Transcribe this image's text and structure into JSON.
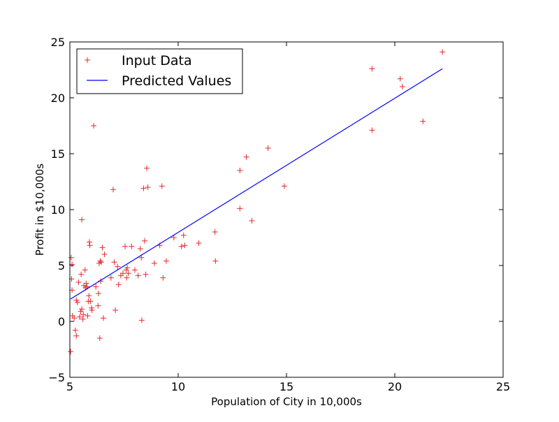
{
  "chart_data": {
    "type": "scatter",
    "xlabel": "Population of City in 10,000s",
    "ylabel": "Profit in $10,000s",
    "xlim": [
      5,
      25
    ],
    "ylim": [
      -5,
      25
    ],
    "xticks": [
      5,
      10,
      15,
      20,
      25
    ],
    "yticks": [
      -5,
      0,
      5,
      10,
      15,
      20,
      25
    ],
    "grid": false,
    "legend_position": "top-left",
    "series": [
      {
        "name": "Input Data",
        "kind": "points",
        "marker": "+",
        "color": "#e8262b",
        "points": [
          [
            5.03,
            -2.7
          ],
          [
            5.06,
            5.7
          ],
          [
            5.1,
            5.1
          ],
          [
            5.08,
            3.8
          ],
          [
            5.1,
            2.8
          ],
          [
            5.12,
            0.5
          ],
          [
            5.2,
            0.3
          ],
          [
            5.25,
            -0.8
          ],
          [
            5.3,
            -1.3
          ],
          [
            5.3,
            1.9
          ],
          [
            5.35,
            1.7
          ],
          [
            5.4,
            3.5
          ],
          [
            5.45,
            0.4
          ],
          [
            5.5,
            0.9
          ],
          [
            5.52,
            4.2
          ],
          [
            5.55,
            9.1
          ],
          [
            5.55,
            1.1
          ],
          [
            5.6,
            0.2
          ],
          [
            5.62,
            0.6
          ],
          [
            5.65,
            3.2
          ],
          [
            5.7,
            4.6
          ],
          [
            5.72,
            3.0
          ],
          [
            5.75,
            3.4
          ],
          [
            5.8,
            3.1
          ],
          [
            5.82,
            0.5
          ],
          [
            5.85,
            1.8
          ],
          [
            5.88,
            2.3
          ],
          [
            5.9,
            7.1
          ],
          [
            5.92,
            6.8
          ],
          [
            5.95,
            1.8
          ],
          [
            6.0,
            1.2
          ],
          [
            6.02,
            1.0
          ],
          [
            6.1,
            17.5
          ],
          [
            6.2,
            3.1
          ],
          [
            6.3,
            1.4
          ],
          [
            6.32,
            2.5
          ],
          [
            6.35,
            5.2
          ],
          [
            6.38,
            -1.5
          ],
          [
            6.4,
            5.4
          ],
          [
            6.42,
            3.6
          ],
          [
            6.45,
            5.3
          ],
          [
            6.5,
            6.6
          ],
          [
            6.55,
            0.3
          ],
          [
            6.6,
            6.0
          ],
          [
            6.9,
            3.9
          ],
          [
            7.0,
            11.8
          ],
          [
            7.05,
            5.3
          ],
          [
            7.1,
            1.0
          ],
          [
            7.2,
            4.9
          ],
          [
            7.25,
            3.3
          ],
          [
            7.35,
            4.1
          ],
          [
            7.45,
            4.3
          ],
          [
            7.55,
            6.7
          ],
          [
            7.6,
            4.6
          ],
          [
            7.62,
            3.9
          ],
          [
            7.65,
            4.8
          ],
          [
            7.7,
            4.3
          ],
          [
            7.85,
            6.7
          ],
          [
            8.0,
            4.6
          ],
          [
            8.15,
            4.1
          ],
          [
            8.25,
            6.5
          ],
          [
            8.3,
            5.7
          ],
          [
            8.32,
            0.1
          ],
          [
            8.4,
            11.9
          ],
          [
            8.45,
            7.2
          ],
          [
            8.5,
            4.2
          ],
          [
            8.55,
            13.7
          ],
          [
            8.6,
            12.0
          ],
          [
            8.9,
            5.2
          ],
          [
            9.15,
            6.8
          ],
          [
            9.25,
            12.1
          ],
          [
            9.3,
            3.9
          ],
          [
            9.45,
            5.4
          ],
          [
            9.8,
            7.5
          ],
          [
            10.15,
            6.7
          ],
          [
            10.25,
            7.7
          ],
          [
            10.3,
            6.8
          ],
          [
            10.95,
            7.0
          ],
          [
            11.7,
            8.0
          ],
          [
            11.72,
            5.4
          ],
          [
            12.85,
            13.5
          ],
          [
            12.85,
            10.1
          ],
          [
            13.15,
            14.7
          ],
          [
            13.4,
            9.0
          ],
          [
            14.15,
            15.5
          ],
          [
            14.9,
            12.1
          ],
          [
            18.95,
            22.6
          ],
          [
            18.95,
            17.1
          ],
          [
            20.25,
            21.7
          ],
          [
            20.35,
            21.0
          ],
          [
            21.3,
            17.9
          ],
          [
            22.2,
            24.1
          ]
        ]
      },
      {
        "name": "Predicted Values",
        "kind": "line",
        "color": "#0000ff",
        "x": [
          5.03,
          22.2
        ],
        "y": [
          2.0,
          22.6
        ]
      }
    ]
  }
}
